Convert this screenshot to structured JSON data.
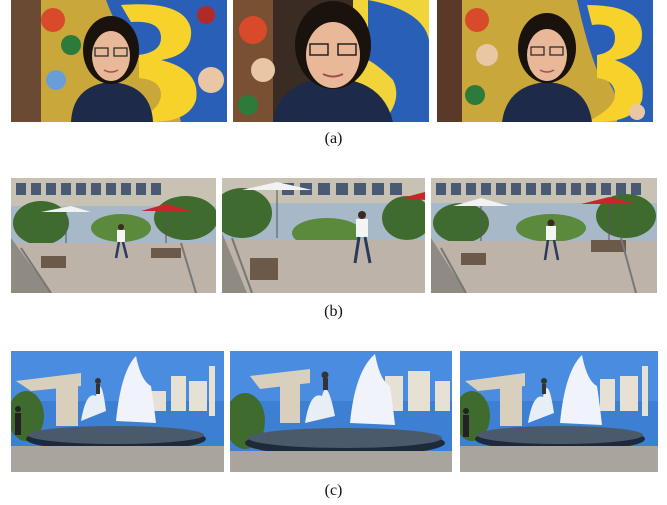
{
  "figure": {
    "captions": {
      "a": "(a)",
      "b": "(b)",
      "c": "(c)"
    },
    "rows": [
      {
        "id": "a",
        "frames": [
          {
            "description": "woman-with-glasses-frame-1"
          },
          {
            "description": "woman-with-glasses-frame-2"
          },
          {
            "description": "woman-with-glasses-frame-3"
          }
        ]
      },
      {
        "id": "b",
        "frames": [
          {
            "description": "man-running-courtyard-frame-1"
          },
          {
            "description": "man-running-courtyard-frame-2"
          },
          {
            "description": "man-running-courtyard-frame-3"
          }
        ]
      },
      {
        "id": "c",
        "frames": [
          {
            "description": "fountain-plaza-frame-1"
          },
          {
            "description": "fountain-plaza-frame-2"
          },
          {
            "description": "fountain-plaza-frame-3"
          }
        ]
      }
    ]
  }
}
